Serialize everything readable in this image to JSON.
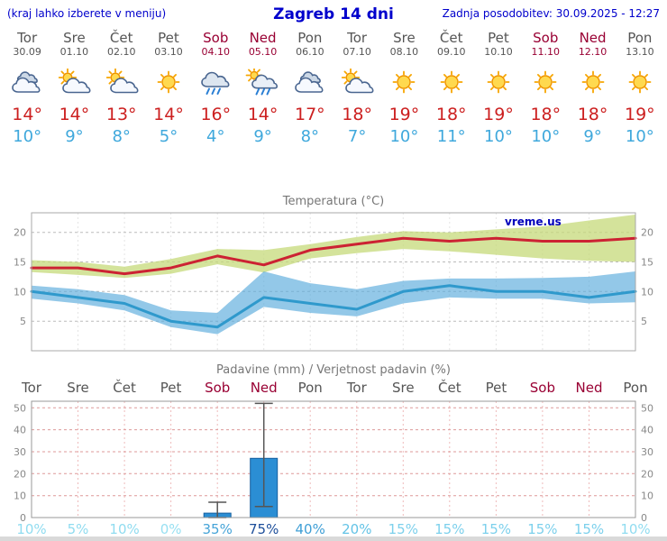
{
  "header": {
    "menu_note": "(kraj lahko izberete v meniju)",
    "title": "Zagreb 14 dni",
    "last_update": "Zadnja posodobitev: 30.09.2025 - 12:27"
  },
  "watermark": "vreme.us",
  "colors": {
    "link_blue": "#0000cc",
    "weekday_gray": "#555555",
    "weekend_red": "#990033",
    "tmax_red": "#cc1f1f",
    "tmin_blue": "#3fa8dc",
    "bar_blue": "#2b8ed4"
  },
  "days": [
    {
      "name": "Tor",
      "date": "30.09",
      "weekend": false,
      "icon": "cloudy",
      "tmax": "14°",
      "tmin": "10°",
      "prob": "10%",
      "prob_color": "#90dcf0"
    },
    {
      "name": "Sre",
      "date": "01.10",
      "weekend": false,
      "icon": "partly",
      "tmax": "14°",
      "tmin": "9°",
      "prob": "5%",
      "prob_color": "#90dcf0"
    },
    {
      "name": "Čet",
      "date": "02.10",
      "weekend": false,
      "icon": "partly",
      "tmax": "13°",
      "tmin": "8°",
      "prob": "10%",
      "prob_color": "#90dcf0"
    },
    {
      "name": "Pet",
      "date": "03.10",
      "weekend": false,
      "icon": "sunny",
      "tmax": "14°",
      "tmin": "5°",
      "prob": "0%",
      "prob_color": "#98e0f2"
    },
    {
      "name": "Sob",
      "date": "04.10",
      "weekend": true,
      "icon": "rain",
      "tmax": "16°",
      "tmin": "4°",
      "prob": "35%",
      "prob_color": "#46a4d8"
    },
    {
      "name": "Ned",
      "date": "05.10",
      "weekend": true,
      "icon": "showers",
      "tmax": "14°",
      "tmin": "9°",
      "prob": "75%",
      "prob_color": "#1d4e9a"
    },
    {
      "name": "Pon",
      "date": "06.10",
      "weekend": false,
      "icon": "cloudy",
      "tmax": "17°",
      "tmin": "8°",
      "prob": "40%",
      "prob_color": "#3f9fd6"
    },
    {
      "name": "Tor",
      "date": "07.10",
      "weekend": false,
      "icon": "partly",
      "tmax": "18°",
      "tmin": "7°",
      "prob": "20%",
      "prob_color": "#63c3e6"
    },
    {
      "name": "Sre",
      "date": "08.10",
      "weekend": false,
      "icon": "sunny",
      "tmax": "19°",
      "tmin": "10°",
      "prob": "15%",
      "prob_color": "#7cd0ec"
    },
    {
      "name": "Čet",
      "date": "09.10",
      "weekend": false,
      "icon": "sunny",
      "tmax": "18°",
      "tmin": "11°",
      "prob": "15%",
      "prob_color": "#7cd0ec"
    },
    {
      "name": "Pet",
      "date": "10.10",
      "weekend": false,
      "icon": "sunny",
      "tmax": "19°",
      "tmin": "10°",
      "prob": "15%",
      "prob_color": "#7cd0ec"
    },
    {
      "name": "Sob",
      "date": "11.10",
      "weekend": true,
      "icon": "sunny",
      "tmax": "18°",
      "tmin": "10°",
      "prob": "15%",
      "prob_color": "#7cd0ec"
    },
    {
      "name": "Ned",
      "date": "12.10",
      "weekend": true,
      "icon": "sunny",
      "tmax": "18°",
      "tmin": "9°",
      "prob": "15%",
      "prob_color": "#7cd0ec"
    },
    {
      "name": "Pon",
      "date": "13.10",
      "weekend": false,
      "icon": "sunny",
      "tmax": "19°",
      "tmin": "10°",
      "prob": "10%",
      "prob_color": "#90dcf0"
    }
  ],
  "chart_data": [
    {
      "type": "line",
      "title": "Temperatura (°C)",
      "categories": [
        "30.09",
        "01.10",
        "02.10",
        "03.10",
        "04.10",
        "05.10",
        "06.10",
        "07.10",
        "08.10",
        "09.10",
        "10.10",
        "11.10",
        "12.10",
        "13.10"
      ],
      "ylim": [
        0,
        23.3
      ],
      "yticks": [
        5,
        10,
        15,
        20
      ],
      "series": [
        {
          "name": "max",
          "color": "#cc2233",
          "values": [
            14,
            14,
            13,
            14,
            16,
            14.5,
            17,
            18,
            19,
            18.5,
            19,
            18.5,
            18.5,
            19
          ]
        },
        {
          "name": "min",
          "color": "#2f99cc",
          "values": [
            10,
            9,
            8,
            5,
            4,
            9,
            8,
            7,
            10,
            11,
            10,
            10,
            9,
            10
          ]
        }
      ],
      "bands": [
        {
          "name": "max-range",
          "color": "#c6da7a",
          "opacity": 0.75,
          "upper": [
            15.3,
            15,
            14.2,
            15.5,
            17.2,
            17,
            18,
            19.2,
            20.2,
            20,
            20.5,
            21,
            22,
            23
          ],
          "lower": [
            13.3,
            12.8,
            12.3,
            13,
            14.6,
            13.2,
            15.6,
            16.5,
            17.2,
            16.8,
            16.2,
            15.6,
            15.2,
            15
          ]
        },
        {
          "name": "min-range",
          "color": "#59abdc",
          "opacity": 0.65,
          "upper": [
            11,
            10.4,
            9.4,
            6.8,
            6.4,
            13.4,
            11.4,
            10.4,
            11.8,
            12.2,
            12.2,
            12.3,
            12.5,
            13.4
          ],
          "lower": [
            8.8,
            8,
            6.8,
            4,
            2.8,
            7.4,
            6.4,
            5.8,
            8,
            9,
            8.8,
            8.8,
            8,
            8.2
          ]
        }
      ]
    },
    {
      "type": "bar",
      "title": "Padavine (mm) / Verjetnost padavin (%)",
      "categories": [
        "Tor",
        "Sre",
        "Čet",
        "Pet",
        "Sob",
        "Ned",
        "Pon",
        "Tor",
        "Sre",
        "Čet",
        "Pet",
        "Sob",
        "Ned",
        "Pon"
      ],
      "ylim": [
        0,
        53
      ],
      "yticks": [
        0,
        10,
        20,
        30,
        40,
        50
      ],
      "values": [
        0,
        0,
        0,
        0,
        2,
        27,
        0,
        0,
        0,
        0,
        0,
        0,
        0,
        0
      ],
      "whisker_low": [
        null,
        null,
        null,
        null,
        0,
        5,
        null,
        null,
        null,
        null,
        null,
        null,
        null,
        null
      ],
      "whisker_high": [
        null,
        null,
        null,
        null,
        7,
        52,
        null,
        null,
        null,
        null,
        null,
        null,
        null,
        null
      ],
      "bar_color": "#2b8ed4",
      "probabilities": [
        "10%",
        "5%",
        "10%",
        "0%",
        "35%",
        "75%",
        "40%",
        "20%",
        "15%",
        "15%",
        "15%",
        "15%",
        "15%",
        "10%"
      ]
    }
  ]
}
